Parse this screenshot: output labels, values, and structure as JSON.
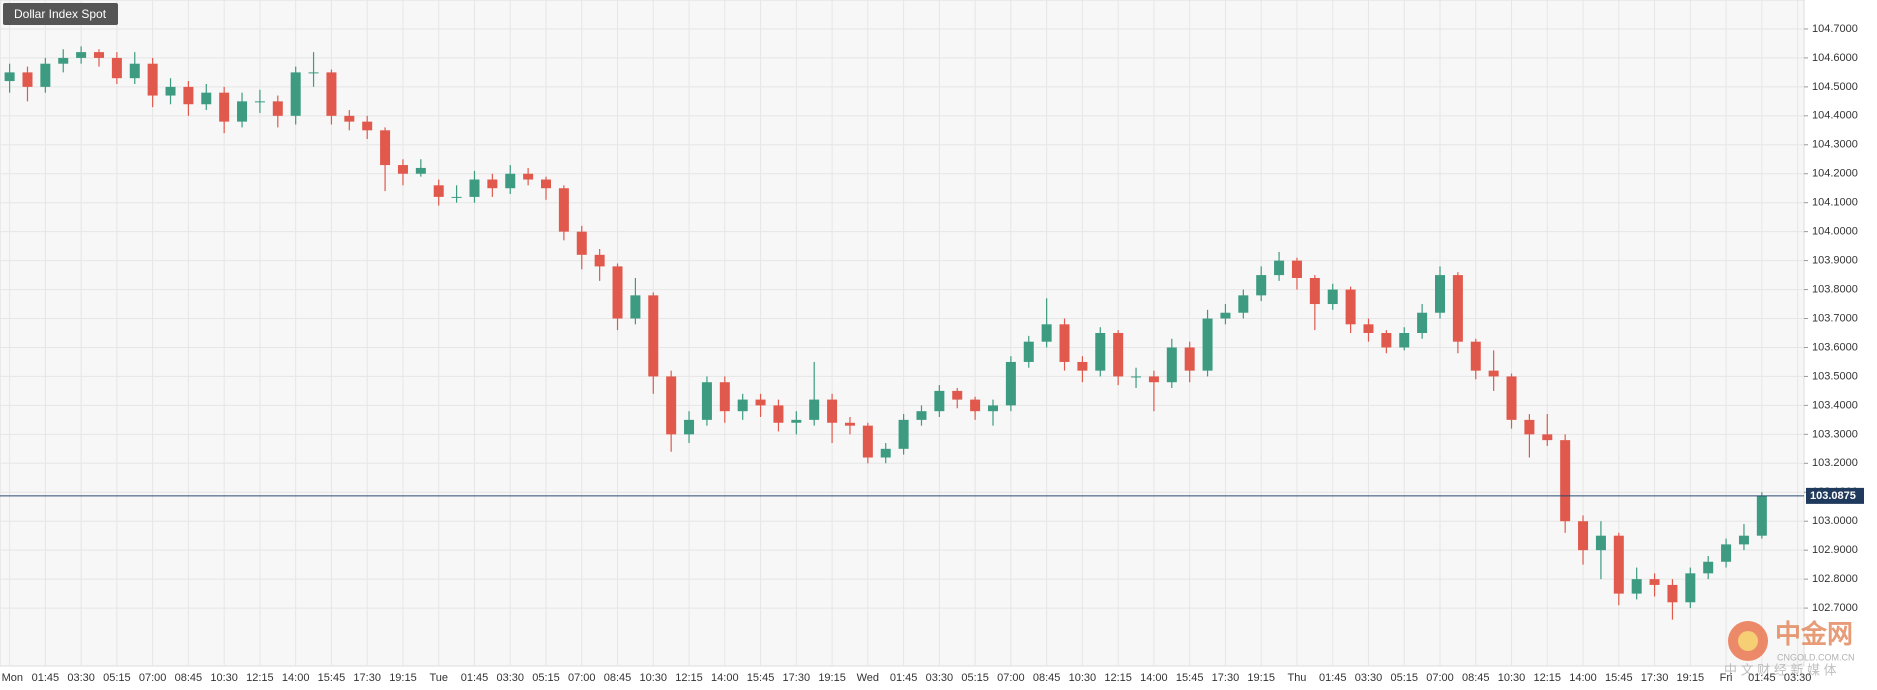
{
  "chart_data": {
    "type": "candlestick",
    "title": "Dollar Index Spot",
    "up_color": "#3c9b80",
    "down_color": "#e0594c",
    "grid": true,
    "ylim": [
      102.5,
      104.8
    ],
    "yticks": [
      {
        "value": 102.7,
        "label": "102.7000"
      },
      {
        "value": 102.8,
        "label": "102.8000"
      },
      {
        "value": 102.9,
        "label": "102.9000"
      },
      {
        "value": 103.0,
        "label": "103.0000"
      },
      {
        "value": 103.1,
        "label": "103.1000"
      },
      {
        "value": 103.2,
        "label": "103.2000"
      },
      {
        "value": 103.3,
        "label": "103.3000"
      },
      {
        "value": 103.4,
        "label": "103.4000"
      },
      {
        "value": 103.5,
        "label": "103.5000"
      },
      {
        "value": 103.6,
        "label": "103.6000"
      },
      {
        "value": 103.7,
        "label": "103.7000"
      },
      {
        "value": 103.8,
        "label": "103.8000"
      },
      {
        "value": 103.9,
        "label": "103.9000"
      },
      {
        "value": 104.0,
        "label": "104.0000"
      },
      {
        "value": 104.1,
        "label": "104.1000"
      },
      {
        "value": 104.2,
        "label": "104.2000"
      },
      {
        "value": 104.3,
        "label": "104.3000"
      },
      {
        "value": 104.4,
        "label": "104.4000"
      },
      {
        "value": 104.5,
        "label": "104.5000"
      },
      {
        "value": 104.6,
        "label": "104.6000"
      },
      {
        "value": 104.7,
        "label": "104.7000"
      }
    ],
    "last_price": 103.0875,
    "categories": [
      "Mon",
      null,
      "01:45",
      null,
      "03:30",
      null,
      "05:15",
      null,
      "07:00",
      null,
      "08:45",
      null,
      "10:30",
      null,
      "12:15",
      null,
      "14:00",
      null,
      "15:45",
      null,
      "17:30",
      null,
      "19:15",
      null,
      "Tue",
      null,
      "01:45",
      null,
      "03:30",
      null,
      "05:15",
      null,
      "07:00",
      null,
      "08:45",
      null,
      "10:30",
      null,
      "12:15",
      null,
      "14:00",
      null,
      "15:45",
      null,
      "17:30",
      null,
      "19:15",
      null,
      "Wed",
      null,
      "01:45",
      null,
      "03:30",
      null,
      "05:15",
      null,
      "07:00",
      null,
      "08:45",
      null,
      "10:30",
      null,
      "12:15",
      null,
      "14:00",
      null,
      "15:45",
      null,
      "17:30",
      null,
      "19:15",
      null,
      "Thu",
      null,
      "01:45",
      null,
      "03:30",
      null,
      "05:15",
      null,
      "07:00",
      null,
      "08:45",
      null,
      "10:30",
      null,
      "12:15",
      null,
      "14:00",
      null,
      "15:45",
      null,
      "17:30",
      null,
      "19:15",
      null,
      "Fri",
      null,
      "01:45",
      null,
      "03:30"
    ],
    "candles": [
      [
        104.52,
        104.58,
        104.48,
        104.55
      ],
      [
        104.55,
        104.57,
        104.45,
        104.5
      ],
      [
        104.5,
        104.6,
        104.48,
        104.58
      ],
      [
        104.58,
        104.63,
        104.55,
        104.6
      ],
      [
        104.6,
        104.64,
        104.58,
        104.62
      ],
      [
        104.62,
        104.63,
        104.57,
        104.6
      ],
      [
        104.6,
        104.62,
        104.51,
        104.53
      ],
      [
        104.53,
        104.62,
        104.51,
        104.58
      ],
      [
        104.58,
        104.6,
        104.43,
        104.47
      ],
      [
        104.47,
        104.53,
        104.44,
        104.5
      ],
      [
        104.5,
        104.52,
        104.4,
        104.44
      ],
      [
        104.44,
        104.51,
        104.42,
        104.48
      ],
      [
        104.48,
        104.5,
        104.34,
        104.38
      ],
      [
        104.38,
        104.48,
        104.36,
        104.45
      ],
      [
        104.45,
        104.49,
        104.41,
        104.45
      ],
      [
        104.45,
        104.47,
        104.36,
        104.4
      ],
      [
        104.4,
        104.57,
        104.37,
        104.55
      ],
      [
        104.55,
        104.62,
        104.5,
        104.55
      ],
      [
        104.55,
        104.56,
        104.37,
        104.4
      ],
      [
        104.4,
        104.42,
        104.35,
        104.38
      ],
      [
        104.38,
        104.4,
        104.32,
        104.35
      ],
      [
        104.35,
        104.36,
        104.14,
        104.23
      ],
      [
        104.23,
        104.25,
        104.16,
        104.2
      ],
      [
        104.2,
        104.25,
        104.19,
        104.22
      ],
      [
        104.16,
        104.18,
        104.09,
        104.12
      ],
      [
        104.12,
        104.16,
        104.1,
        104.12
      ],
      [
        104.12,
        104.21,
        104.1,
        104.18
      ],
      [
        104.18,
        104.2,
        104.12,
        104.15
      ],
      [
        104.15,
        104.23,
        104.13,
        104.2
      ],
      [
        104.2,
        104.22,
        104.16,
        104.18
      ],
      [
        104.18,
        104.19,
        104.11,
        104.15
      ],
      [
        104.15,
        104.16,
        103.97,
        104.0
      ],
      [
        104.0,
        104.02,
        103.87,
        103.92
      ],
      [
        103.92,
        103.94,
        103.83,
        103.88
      ],
      [
        103.88,
        103.89,
        103.66,
        103.7
      ],
      [
        103.7,
        103.84,
        103.68,
        103.78
      ],
      [
        103.78,
        103.79,
        103.44,
        103.5
      ],
      [
        103.5,
        103.52,
        103.24,
        103.3
      ],
      [
        103.3,
        103.38,
        103.27,
        103.35
      ],
      [
        103.35,
        103.5,
        103.33,
        103.48
      ],
      [
        103.48,
        103.5,
        103.34,
        103.38
      ],
      [
        103.38,
        103.44,
        103.35,
        103.42
      ],
      [
        103.42,
        103.44,
        103.36,
        103.4
      ],
      [
        103.4,
        103.42,
        103.31,
        103.34
      ],
      [
        103.34,
        103.38,
        103.3,
        103.35
      ],
      [
        103.35,
        103.55,
        103.33,
        103.42
      ],
      [
        103.42,
        103.44,
        103.27,
        103.34
      ],
      [
        103.34,
        103.36,
        103.3,
        103.33
      ],
      [
        103.33,
        103.34,
        103.2,
        103.22
      ],
      [
        103.22,
        103.27,
        103.2,
        103.25
      ],
      [
        103.25,
        103.37,
        103.23,
        103.35
      ],
      [
        103.35,
        103.4,
        103.33,
        103.38
      ],
      [
        103.38,
        103.47,
        103.36,
        103.45
      ],
      [
        103.45,
        103.46,
        103.39,
        103.42
      ],
      [
        103.42,
        103.43,
        103.35,
        103.38
      ],
      [
        103.38,
        103.42,
        103.33,
        103.4
      ],
      [
        103.4,
        103.57,
        103.38,
        103.55
      ],
      [
        103.55,
        103.64,
        103.53,
        103.62
      ],
      [
        103.62,
        103.77,
        103.6,
        103.68
      ],
      [
        103.68,
        103.7,
        103.52,
        103.55
      ],
      [
        103.55,
        103.57,
        103.48,
        103.52
      ],
      [
        103.52,
        103.67,
        103.5,
        103.65
      ],
      [
        103.65,
        103.66,
        103.47,
        103.5
      ],
      [
        103.5,
        103.53,
        103.46,
        103.5
      ],
      [
        103.5,
        103.52,
        103.38,
        103.48
      ],
      [
        103.48,
        103.63,
        103.46,
        103.6
      ],
      [
        103.6,
        103.62,
        103.48,
        103.52
      ],
      [
        103.52,
        103.73,
        103.5,
        103.7
      ],
      [
        103.7,
        103.75,
        103.68,
        103.72
      ],
      [
        103.72,
        103.8,
        103.7,
        103.78
      ],
      [
        103.78,
        103.88,
        103.76,
        103.85
      ],
      [
        103.85,
        103.93,
        103.83,
        103.9
      ],
      [
        103.9,
        103.91,
        103.8,
        103.84
      ],
      [
        103.84,
        103.85,
        103.66,
        103.75
      ],
      [
        103.75,
        103.82,
        103.73,
        103.8
      ],
      [
        103.8,
        103.81,
        103.65,
        103.68
      ],
      [
        103.68,
        103.7,
        103.62,
        103.65
      ],
      [
        103.65,
        103.66,
        103.58,
        103.6
      ],
      [
        103.6,
        103.67,
        103.59,
        103.65
      ],
      [
        103.65,
        103.75,
        103.63,
        103.72
      ],
      [
        103.72,
        103.88,
        103.7,
        103.85
      ],
      [
        103.85,
        103.86,
        103.58,
        103.62
      ],
      [
        103.62,
        103.63,
        103.49,
        103.52
      ],
      [
        103.52,
        103.59,
        103.45,
        103.5
      ],
      [
        103.5,
        103.51,
        103.32,
        103.35
      ],
      [
        103.35,
        103.37,
        103.22,
        103.3
      ],
      [
        103.3,
        103.37,
        103.26,
        103.28
      ],
      [
        103.28,
        103.3,
        102.96,
        103.0
      ],
      [
        103.0,
        103.02,
        102.85,
        102.9
      ],
      [
        102.9,
        103.0,
        102.8,
        102.95
      ],
      [
        102.95,
        102.96,
        102.71,
        102.75
      ],
      [
        102.75,
        102.84,
        102.73,
        102.8
      ],
      [
        102.8,
        102.82,
        102.74,
        102.78
      ],
      [
        102.78,
        102.8,
        102.66,
        102.72
      ],
      [
        102.72,
        102.84,
        102.7,
        102.82
      ],
      [
        102.82,
        102.88,
        102.8,
        102.86
      ],
      [
        102.86,
        102.94,
        102.84,
        102.92
      ],
      [
        102.92,
        102.99,
        102.9,
        102.95
      ],
      [
        102.95,
        103.1,
        102.94,
        103.0875
      ],
      null,
      null
    ]
  },
  "watermark": {
    "brand": "中金网",
    "domain": "CNGOLD.COM.CN",
    "slogan": "中 文 财 经 新 媒 体"
  }
}
